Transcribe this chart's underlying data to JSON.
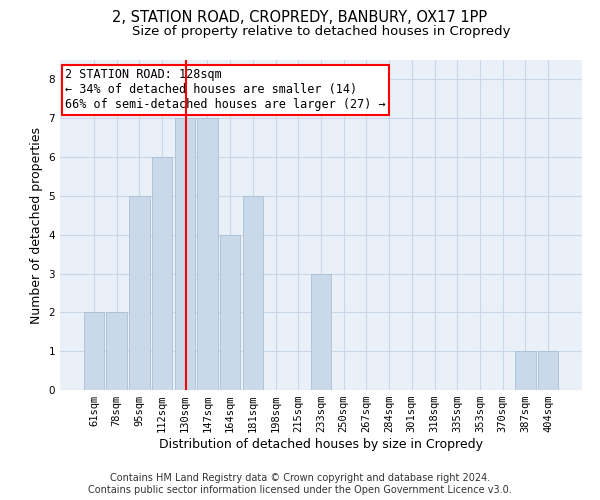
{
  "title_line1": "2, STATION ROAD, CROPREDY, BANBURY, OX17 1PP",
  "title_line2": "Size of property relative to detached houses in Cropredy",
  "xlabel": "Distribution of detached houses by size in Cropredy",
  "ylabel": "Number of detached properties",
  "footer_line1": "Contains HM Land Registry data © Crown copyright and database right 2024.",
  "footer_line2": "Contains public sector information licensed under the Open Government Licence v3.0.",
  "categories": [
    "61sqm",
    "78sqm",
    "95sqm",
    "112sqm",
    "130sqm",
    "147sqm",
    "164sqm",
    "181sqm",
    "198sqm",
    "215sqm",
    "233sqm",
    "250sqm",
    "267sqm",
    "284sqm",
    "301sqm",
    "318sqm",
    "335sqm",
    "353sqm",
    "370sqm",
    "387sqm",
    "404sqm"
  ],
  "values": [
    2,
    2,
    5,
    6,
    7,
    7,
    4,
    5,
    0,
    0,
    3,
    0,
    0,
    0,
    0,
    0,
    0,
    0,
    0,
    1,
    1
  ],
  "bar_color": "#c9d9ea",
  "bar_edge_color": "#a8bfd4",
  "grid_color": "#c8d8e8",
  "background_color": "#eaf0f7",
  "annotation_line1": "2 STATION ROAD: 128sqm",
  "annotation_line2": "← 34% of detached houses are smaller (14)",
  "annotation_line3": "66% of semi-detached houses are larger (27) →",
  "annotation_box_color": "white",
  "annotation_box_edge_color": "red",
  "vline_x": 4.05,
  "vline_color": "red",
  "ylim_max": 8.5,
  "yticks": [
    0,
    1,
    2,
    3,
    4,
    5,
    6,
    7,
    8
  ],
  "title_fontsize": 10.5,
  "subtitle_fontsize": 9.5,
  "xlabel_fontsize": 9,
  "ylabel_fontsize": 9,
  "tick_fontsize": 7.5,
  "annotation_fontsize": 8.5,
  "footer_fontsize": 7
}
